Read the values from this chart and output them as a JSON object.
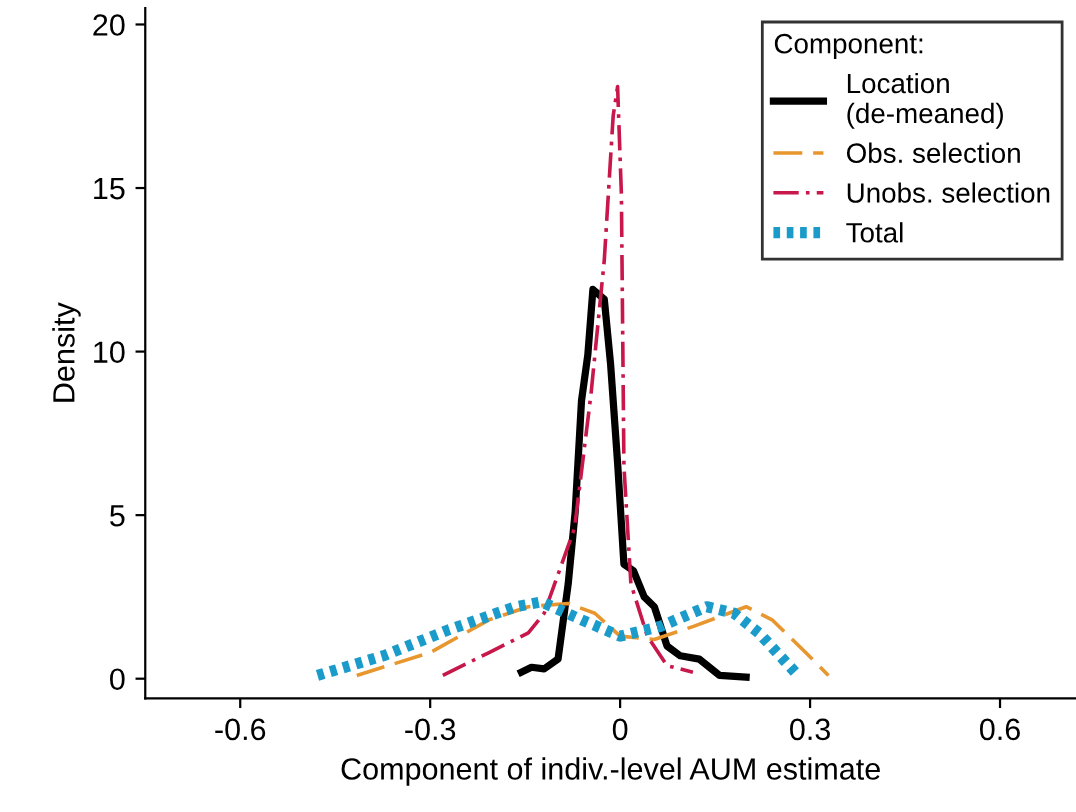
{
  "chart_data": {
    "type": "line",
    "xlabel": "Component of indiv.-level AUM estimate",
    "ylabel": "Density",
    "legend_title": "Component:",
    "legend": "top right",
    "grid": false,
    "marker": "none",
    "xlim": [
      -0.75,
      0.72
    ],
    "xticks": [
      -0.6,
      -0.3,
      0,
      0.3,
      0.6
    ],
    "ylim": [
      -0.6,
      20.5
    ],
    "yticks": [
      0,
      5,
      10,
      15,
      20
    ],
    "series": [
      {
        "name": "Location\n(de-meaned)",
        "color": "#000000",
        "line_style": "solid",
        "x": [
          -0.156,
          -0.14,
          -0.12,
          -0.098,
          -0.082,
          -0.071,
          -0.061,
          -0.051,
          -0.043,
          -0.025,
          -0.015,
          -0.004,
          0.006,
          0.021,
          0.038,
          0.054,
          0.074,
          0.095,
          0.125,
          0.157,
          0.199
        ],
        "values": [
          0.2,
          0.35,
          0.3,
          0.6,
          2.9,
          5.1,
          8.5,
          9.9,
          11.9,
          11.6,
          9.6,
          6.6,
          3.5,
          3.3,
          2.5,
          2.2,
          1.0,
          0.7,
          0.6,
          0.1,
          0.05
        ]
      },
      {
        "name": "Obs. selection",
        "color": "#e8962e",
        "line_style": "dashed",
        "x": [
          -0.416,
          -0.3,
          -0.207,
          -0.145,
          -0.082,
          -0.04,
          0.0,
          0.054,
          0.116,
          0.199,
          0.24,
          0.293,
          0.329
        ],
        "values": [
          0.1,
          0.8,
          1.8,
          2.2,
          2.3,
          2.0,
          1.3,
          1.2,
          1.6,
          2.2,
          1.8,
          0.8,
          0.1
        ]
      },
      {
        "name": "Unobs. selection",
        "color": "#c8174a",
        "line_style": "dashdot",
        "x": [
          -0.28,
          -0.207,
          -0.145,
          -0.12,
          -0.072,
          -0.046,
          -0.025,
          -0.011,
          -0.004,
          0.002,
          0.006,
          0.017,
          0.043,
          0.074,
          0.115
        ],
        "values": [
          0.1,
          0.8,
          1.4,
          2.0,
          4.6,
          8.7,
          12.8,
          17.2,
          18.1,
          14.8,
          6.5,
          2.9,
          1.3,
          0.4,
          0.2
        ]
      },
      {
        "name": "Total",
        "color": "#1a9bc9",
        "line_style": "dotted",
        "x": [
          -0.478,
          -0.374,
          -0.27,
          -0.165,
          -0.124,
          -0.061,
          0.0,
          0.064,
          0.137,
          0.18,
          0.219,
          0.281
        ],
        "values": [
          0.1,
          0.7,
          1.5,
          2.2,
          2.35,
          1.8,
          1.3,
          1.6,
          2.2,
          2.0,
          1.4,
          0.1
        ]
      }
    ]
  }
}
